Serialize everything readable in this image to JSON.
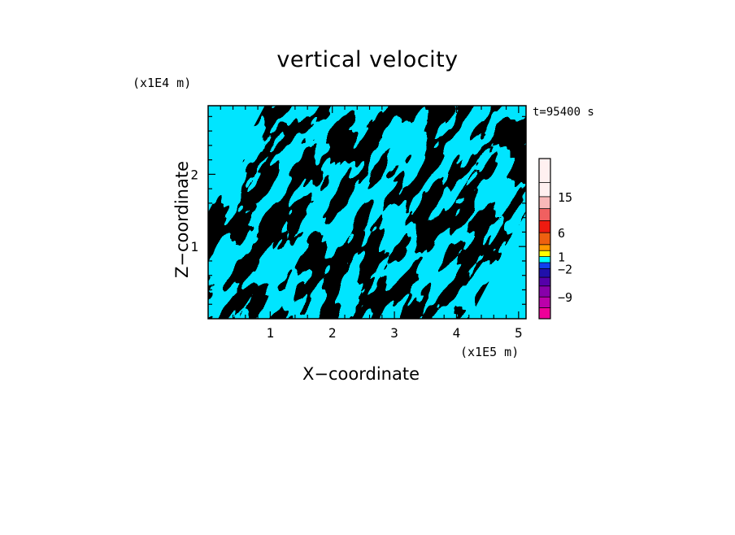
{
  "chart_data": {
    "type": "heatmap",
    "title": "vertical velocity",
    "xlabel": "X−coordinate",
    "ylabel": "Z−coordinate",
    "x_unit": "(x1E5 m)",
    "y_unit": "(x1E4 m)",
    "time_label": "t=95400 s",
    "xlim": [
      0,
      5.12
    ],
    "ylim": [
      0,
      2.95
    ],
    "x_ticks": [
      1,
      2,
      3,
      4,
      5
    ],
    "x_tick_labels": [
      "1",
      "2",
      "3",
      "4",
      "5"
    ],
    "y_ticks": [
      1,
      2
    ],
    "y_tick_labels": [
      "1",
      "2"
    ],
    "field_colors": {
      "negative": "#00e5ff",
      "positive": "#ffff00"
    },
    "colorbar": {
      "labels": [
        {
          "text": "15",
          "value": 15
        },
        {
          "text": "6",
          "value": 6
        },
        {
          "text": "1",
          "value": 1
        },
        {
          "text": "−2",
          "value": -2
        },
        {
          "text": "−9",
          "value": -9
        }
      ],
      "colors_top_to_bottom": [
        "#fff0f0",
        "#fff0f0",
        "#f8b8b8",
        "#f06060",
        "#ee1b10",
        "#ee6010",
        "#ff9900",
        "#ffff00",
        "#00ffff",
        "#1040ee",
        "#2010aa",
        "#5500aa",
        "#8800aa",
        "#bb00aa",
        "#ee0099"
      ]
    }
  }
}
